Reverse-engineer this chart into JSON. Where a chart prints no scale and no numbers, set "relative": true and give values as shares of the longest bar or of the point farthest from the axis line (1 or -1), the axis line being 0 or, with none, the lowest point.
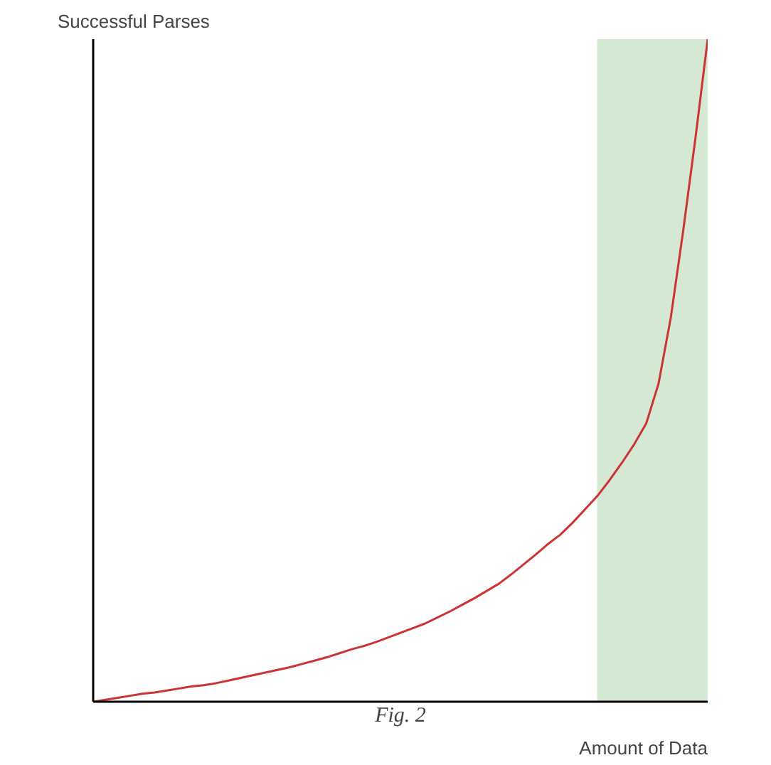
{
  "chart_data": {
    "type": "line",
    "relative": true,
    "xlabel": "Amount of Data",
    "ylabel": "Successful Parses",
    "categories": [
      null,
      null,
      null,
      null,
      null,
      null,
      null,
      null,
      null,
      null,
      null,
      null,
      null,
      null,
      null,
      null,
      null,
      null,
      null,
      null,
      null,
      null,
      null,
      null,
      null,
      null,
      null,
      null,
      null,
      null,
      null,
      null,
      null,
      null,
      null,
      null,
      null,
      null,
      null,
      null,
      null,
      null,
      null,
      null,
      null,
      null,
      null,
      null,
      null,
      null,
      null
    ],
    "series": [
      {
        "type": "area",
        "color": "#d5e8d4",
        "values": [
          null,
          null,
          null,
          null,
          null,
          null,
          null,
          null,
          null,
          null,
          null,
          null,
          null,
          null,
          null,
          null,
          null,
          null,
          null,
          null,
          null,
          null,
          null,
          null,
          null,
          null,
          null,
          null,
          null,
          null,
          null,
          null,
          null,
          null,
          null,
          null,
          null,
          null,
          null,
          null,
          null,
          1,
          1,
          1,
          1,
          1,
          1,
          1,
          1,
          1,
          1
        ]
      },
      {
        "color": "#cc3333",
        "values": [
          0,
          0.003,
          0.006,
          0.009,
          0.012,
          0.014,
          0.017,
          0.02,
          0.023,
          0.025,
          0.028,
          0.032,
          0.036,
          0.04,
          0.044,
          0.048,
          0.052,
          0.057,
          0.062,
          0.067,
          0.073,
          0.079,
          0.084,
          0.09,
          0.097,
          0.104,
          0.111,
          0.118,
          0.127,
          0.136,
          0.146,
          0.156,
          0.167,
          0.178,
          0.192,
          0.207,
          0.222,
          0.238,
          0.252,
          0.27,
          0.29,
          0.31,
          0.334,
          0.36,
          0.388,
          0.42,
          0.48,
          0.58,
          0.71,
          0.85,
          1.0
        ]
      }
    ],
    "annotations": [
      "Fig. 2"
    ]
  }
}
